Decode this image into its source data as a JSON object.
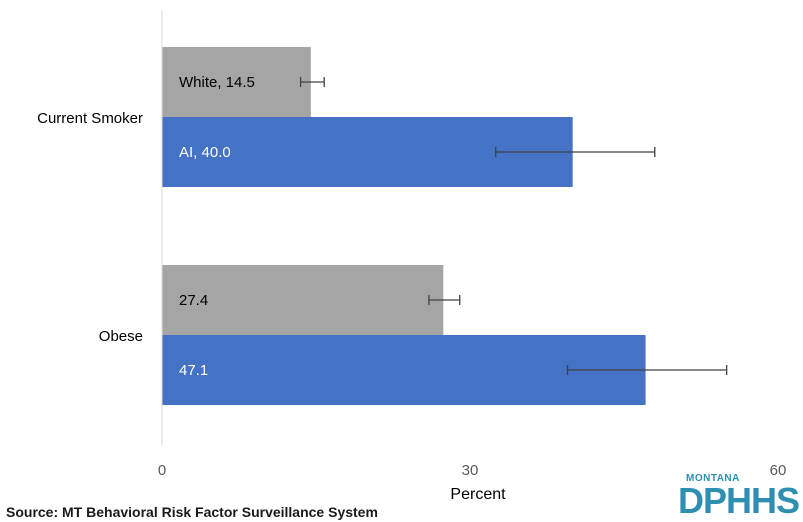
{
  "chart_data": {
    "type": "bar",
    "orientation": "horizontal",
    "xlabel": "Percent",
    "xlim": [
      0,
      60
    ],
    "xticks": [
      "0",
      "30",
      "60"
    ],
    "categories": [
      "Current Smoker",
      "Obese"
    ],
    "series": [
      {
        "name": "White",
        "color": "#a5a5a5",
        "values": [
          14.5,
          27.4
        ],
        "error_low": [
          13.5,
          26.0
        ],
        "error_high": [
          15.8,
          29.0
        ],
        "data_labels": [
          "White, 14.5",
          "27.4"
        ],
        "label_color": "#000000"
      },
      {
        "name": "AI",
        "color": "#4472c4",
        "values": [
          40.0,
          47.1
        ],
        "error_low": [
          32.5,
          39.5
        ],
        "error_high": [
          48.0,
          55.0
        ],
        "data_labels": [
          "AI, 40.0",
          "47.1"
        ],
        "label_color": "#ffffff"
      }
    ],
    "grid": false
  },
  "source": "Source: MT Behavioral Risk Factor Surveillance System",
  "logo": {
    "top_text": "MONTANA",
    "main_text": "DPHHS"
  }
}
